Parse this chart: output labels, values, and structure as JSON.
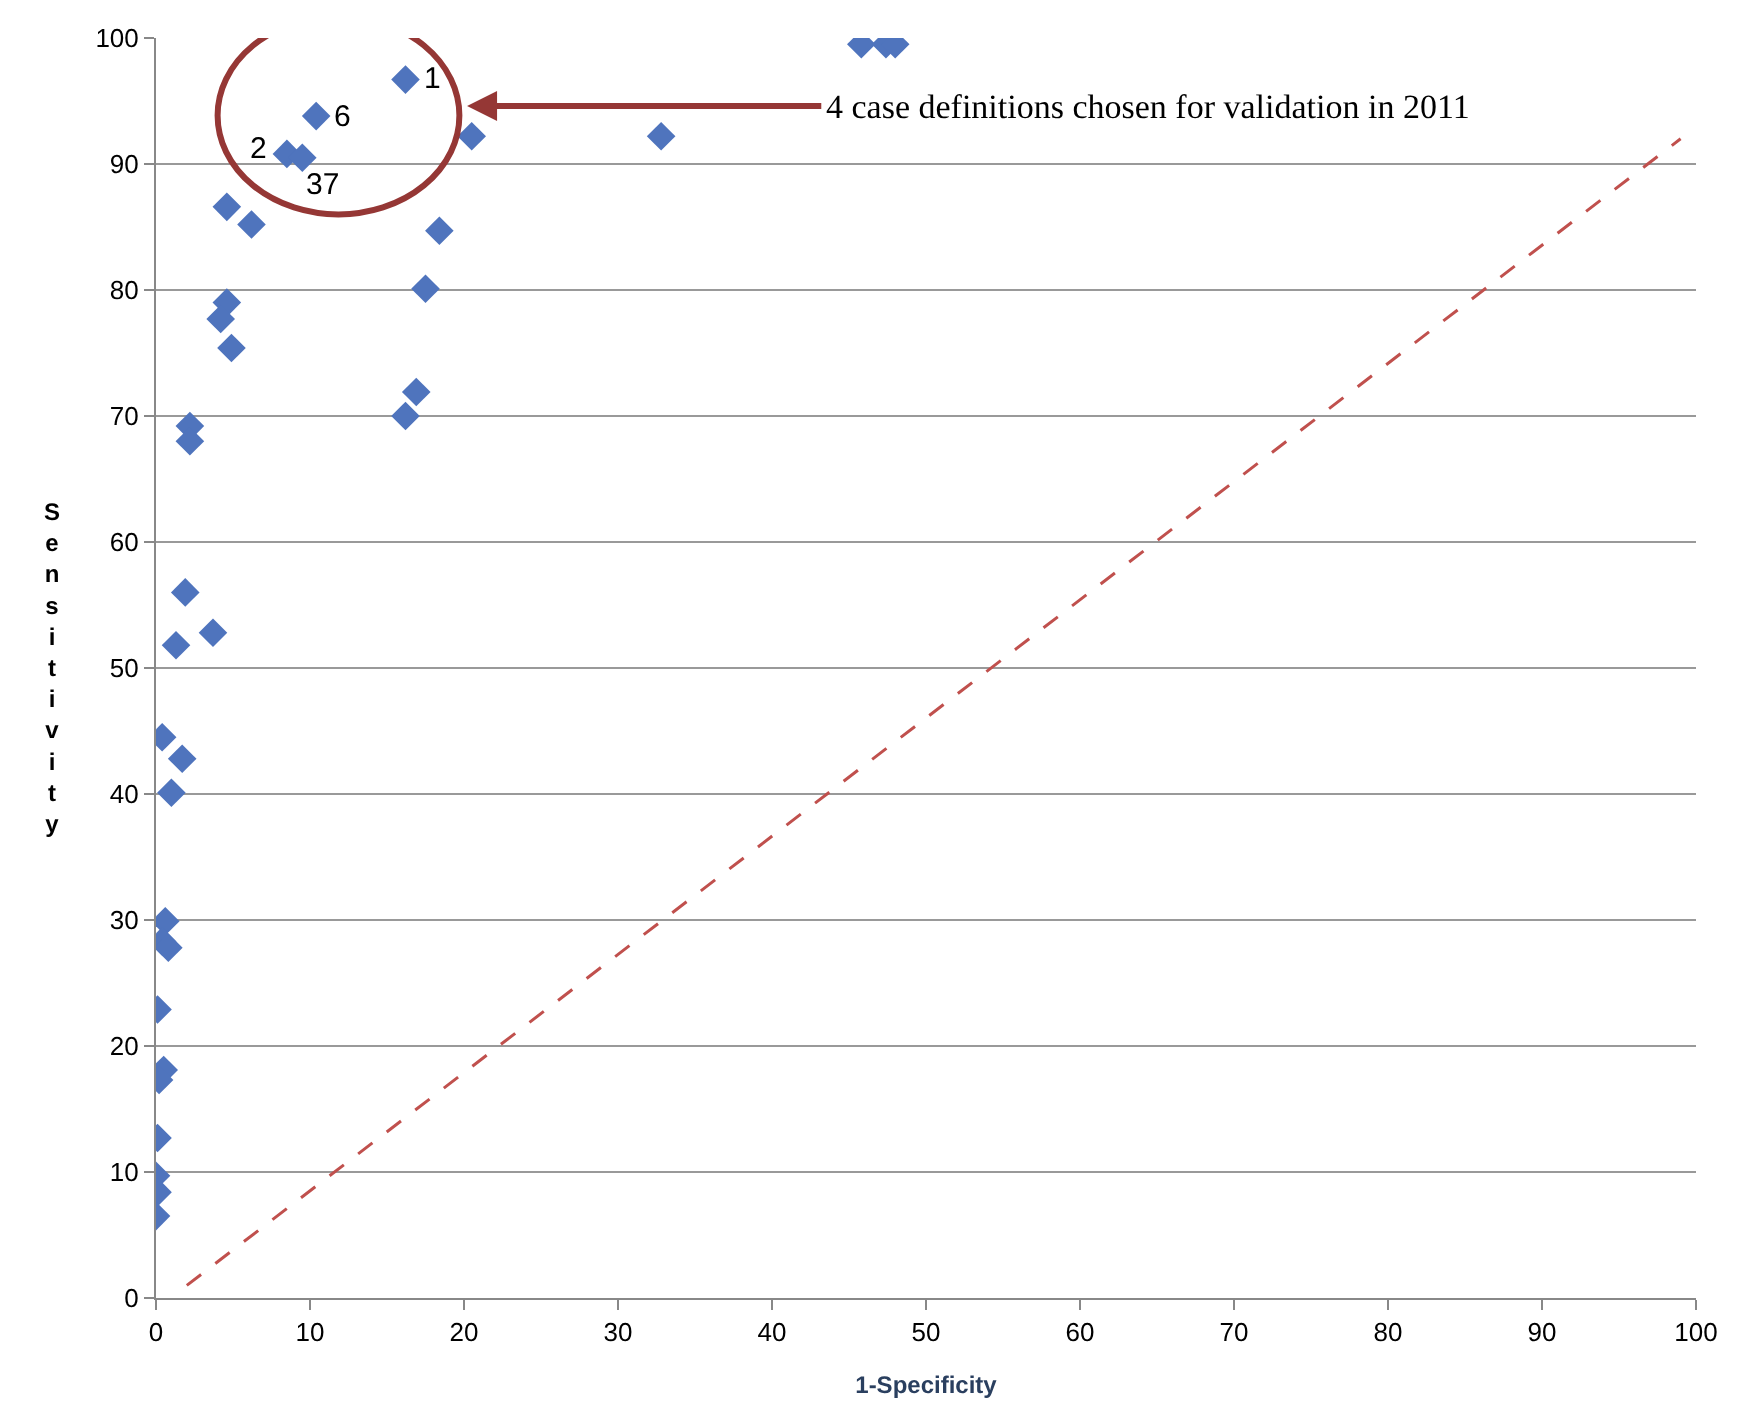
{
  "chart_data": {
    "type": "scatter",
    "xlabel": "1-Specificity",
    "ylabel": "Sensitivity",
    "series": [
      {
        "color": "#4f74bd",
        "marker": "diamond",
        "x": [
          16.2,
          8.5,
          10.4,
          9.5,
          20.5,
          32.8,
          45.8,
          47.4,
          48.0,
          4.6,
          6.2,
          18.4,
          17.5,
          4.6,
          4.2,
          4.9,
          16.9,
          16.2,
          2.2,
          2.2,
          1.9,
          3.7,
          1.3,
          0.4,
          1.7,
          1.0,
          0.6,
          0.4,
          0.8,
          0.1,
          0.5,
          0.2,
          0.1,
          0.0,
          0.1,
          0.0
        ],
        "values": [
          96.7,
          90.8,
          93.8,
          90.5,
          92.2,
          92.2,
          99.5,
          99.5,
          99.5,
          86.6,
          85.2,
          84.7,
          80.1,
          79.0,
          77.7,
          75.4,
          71.9,
          70.0,
          69.2,
          68.0,
          56.0,
          52.8,
          51.8,
          44.5,
          42.8,
          40.1,
          29.9,
          28.3,
          27.8,
          22.9,
          18.1,
          17.3,
          12.7,
          9.7,
          8.4,
          6.5
        ]
      },
      {
        "type": "line",
        "color": "#c0504d",
        "line_style": "dashed",
        "marker": "none",
        "x": [
          2,
          99
        ],
        "values": [
          1,
          92
        ]
      }
    ],
    "annotations": [
      {
        "text": "1",
        "x": 16.2,
        "y": 96.7
      },
      {
        "text": "2",
        "x": 8.5,
        "y": 90.8
      },
      {
        "text": "6",
        "x": 10.4,
        "y": 93.8
      },
      {
        "text": "37",
        "x": 9.5,
        "y": 90.5
      },
      "4 case definitions chosen for validation in 2011"
    ],
    "xlim": [
      0,
      100
    ],
    "ylim": [
      0,
      100
    ],
    "xticks": [
      0,
      10,
      20,
      30,
      40,
      50,
      60,
      70,
      80,
      90,
      100
    ],
    "yticks": [
      0,
      10,
      20,
      30,
      40,
      50,
      60,
      70,
      80,
      90,
      100
    ],
    "grid": "y"
  }
}
